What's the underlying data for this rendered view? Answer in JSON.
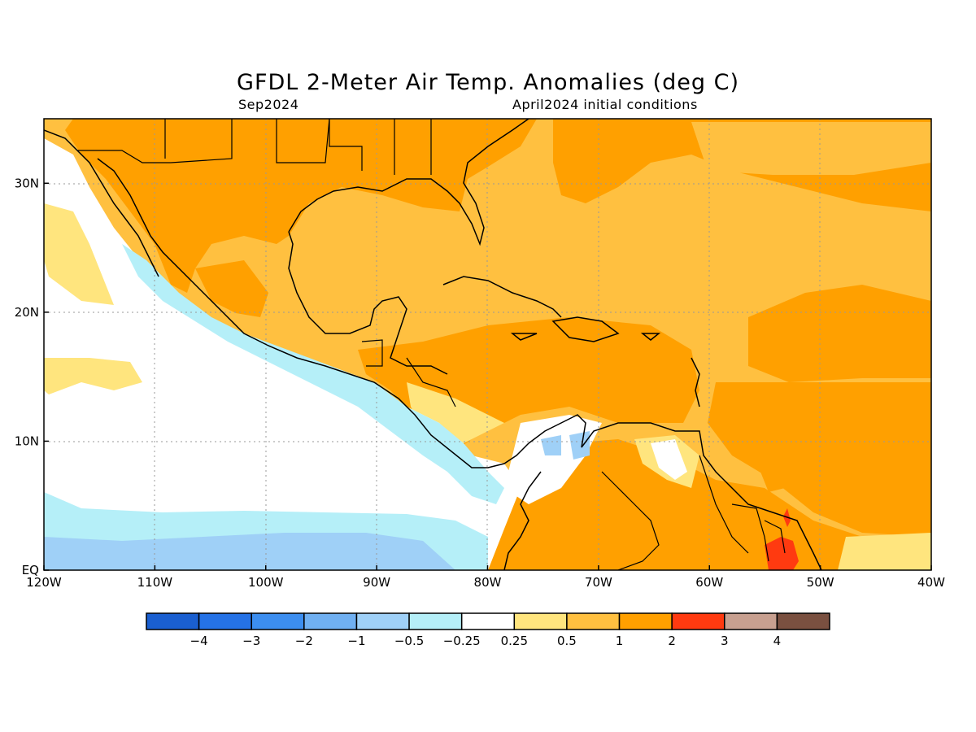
{
  "header": {
    "title": "GFDL 2-Meter Air Temp. Anomalies (deg C)",
    "month": "Sep2024",
    "init": "April2024 initial conditions"
  },
  "axes": {
    "lat_ticks": [
      "30N",
      "20N",
      "10N",
      "EQ"
    ],
    "lon_ticks": [
      "120W",
      "110W",
      "100W",
      "90W",
      "80W",
      "70W",
      "60W",
      "50W",
      "40W"
    ],
    "lat_range": [
      0,
      35
    ],
    "lon_range": [
      -120,
      -40
    ]
  },
  "colorbar": {
    "colors": [
      "#1a5fd0",
      "#2572e6",
      "#3c8ef0",
      "#70b0f2",
      "#9fd0f7",
      "#b5eff8",
      "#ffffff",
      "#ffe57e",
      "#ffc040",
      "#ffa000",
      "#ff3a10",
      "#c8a090",
      "#7a5040"
    ],
    "labels": [
      "-4",
      "-3",
      "-2",
      "-1",
      "-0.5",
      "-0.25",
      "0.25",
      "0.5",
      "1",
      "2",
      "3",
      "4"
    ]
  }
}
